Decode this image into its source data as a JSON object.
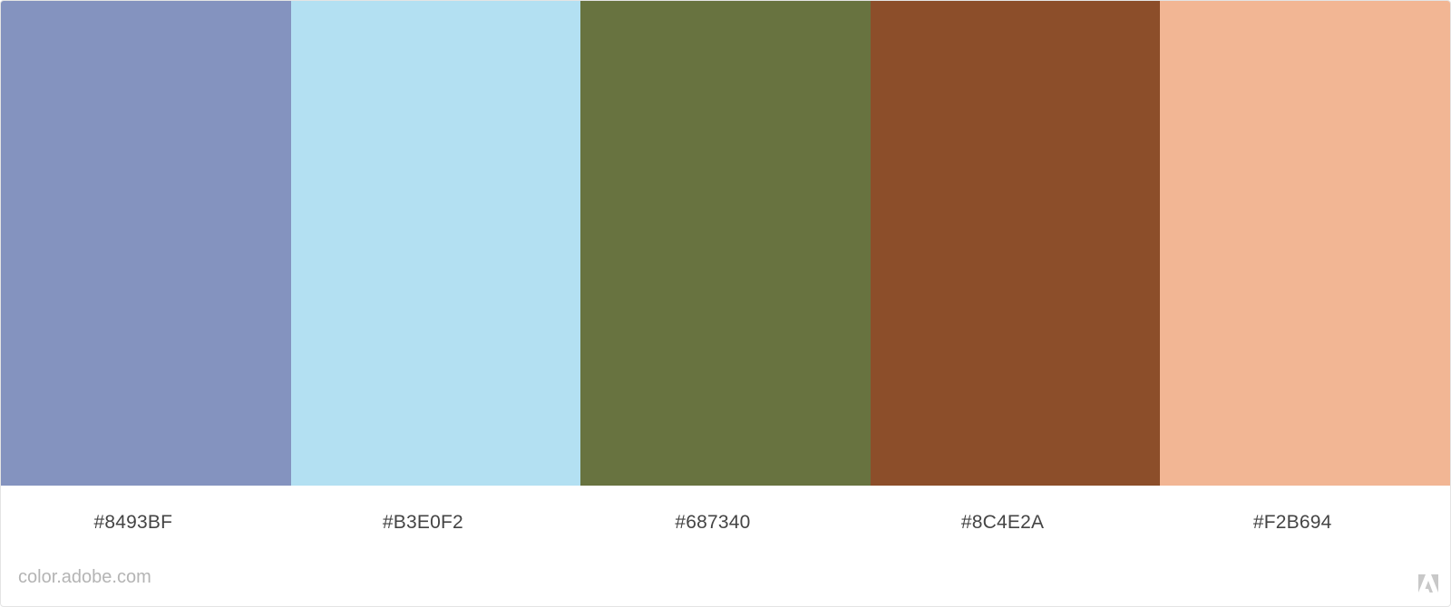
{
  "palette": {
    "swatches": [
      {
        "hex": "#8493BF",
        "color": "#8493BF"
      },
      {
        "hex": "#B3E0F2",
        "color": "#B3E0F2"
      },
      {
        "hex": "#687340",
        "color": "#687340"
      },
      {
        "hex": "#8C4E2A",
        "color": "#8C4E2A"
      },
      {
        "hex": "#F2B694",
        "color": "#F2B694"
      }
    ]
  },
  "footer": {
    "site": "color.adobe.com",
    "logo_icon": "adobe-logo-icon",
    "logo_color": "#c8c8c8"
  }
}
